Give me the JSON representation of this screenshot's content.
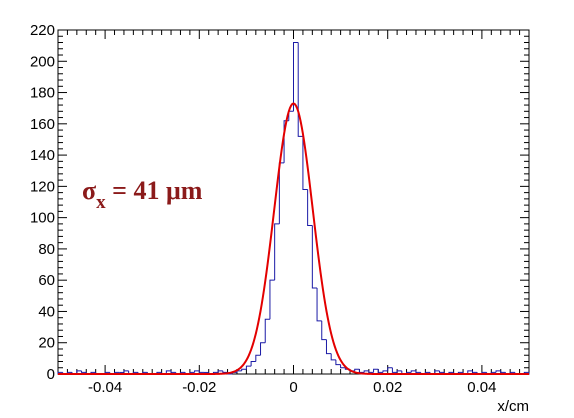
{
  "chart_data": {
    "type": "histogram",
    "title": "",
    "xlabel": "x/cm",
    "ylabel": "",
    "xlim": [
      -0.05,
      0.05
    ],
    "ylim": [
      0,
      220
    ],
    "x_ticks": [
      -0.04,
      -0.02,
      0,
      0.02,
      0.04
    ],
    "x_tick_labels": [
      "-0.04",
      "-0.02",
      "0",
      "0.02",
      "0.04"
    ],
    "y_ticks": [
      0,
      20,
      40,
      60,
      80,
      100,
      120,
      140,
      160,
      180,
      200,
      220
    ],
    "y_tick_labels": [
      "0",
      "20",
      "40",
      "60",
      "80",
      "100",
      "120",
      "140",
      "160",
      "180",
      "200",
      "220"
    ],
    "grid": false,
    "legend": "none",
    "bin_width": 0.001,
    "histogram": {
      "color": "#1a1aa6",
      "bin_low_edges": [
        -0.05,
        -0.049,
        -0.048,
        -0.047,
        -0.046,
        -0.045,
        -0.044,
        -0.043,
        -0.042,
        -0.041,
        -0.04,
        -0.039,
        -0.038,
        -0.037,
        -0.036,
        -0.035,
        -0.034,
        -0.033,
        -0.032,
        -0.031,
        -0.03,
        -0.029,
        -0.028,
        -0.027,
        -0.026,
        -0.025,
        -0.024,
        -0.023,
        -0.022,
        -0.021,
        -0.02,
        -0.019,
        -0.018,
        -0.017,
        -0.016,
        -0.015,
        -0.014,
        -0.013,
        -0.012,
        -0.011,
        -0.01,
        -0.009,
        -0.008,
        -0.007,
        -0.006,
        -0.005,
        -0.004,
        -0.003,
        -0.002,
        -0.001,
        0.0,
        0.001,
        0.002,
        0.003,
        0.004,
        0.005,
        0.006,
        0.007,
        0.008,
        0.009,
        0.01,
        0.011,
        0.012,
        0.013,
        0.014,
        0.015,
        0.016,
        0.017,
        0.018,
        0.019,
        0.02,
        0.021,
        0.022,
        0.023,
        0.024,
        0.025,
        0.026,
        0.027,
        0.028,
        0.029,
        0.03,
        0.031,
        0.032,
        0.033,
        0.034,
        0.035,
        0.036,
        0.037,
        0.038,
        0.039,
        0.04,
        0.041,
        0.042,
        0.043,
        0.044,
        0.045,
        0.046,
        0.047,
        0.048,
        0.049
      ],
      "counts": [
        1,
        0,
        1,
        0,
        2,
        1,
        0,
        1,
        0,
        0,
        1,
        0,
        1,
        1,
        2,
        0,
        1,
        0,
        1,
        0,
        0,
        1,
        0,
        2,
        1,
        0,
        1,
        0,
        1,
        2,
        1,
        1,
        0,
        1,
        2,
        1,
        0,
        1,
        2,
        3,
        5,
        8,
        12,
        20,
        35,
        60,
        96,
        135,
        162,
        168,
        212,
        152,
        118,
        95,
        55,
        34,
        22,
        13,
        9,
        6,
        4,
        3,
        2,
        3,
        1,
        2,
        1,
        3,
        1,
        2,
        4,
        1,
        2,
        0,
        1,
        2,
        1,
        0,
        1,
        0,
        2,
        1,
        0,
        1,
        0,
        1,
        0,
        2,
        1,
        0,
        1,
        0,
        1,
        2,
        1,
        0,
        1,
        0,
        0,
        1
      ]
    },
    "fit": {
      "function": "gaussian",
      "color": "#e30000",
      "constant": 173,
      "mean": 0.0,
      "sigma": 0.0041,
      "x_range": [
        -0.05,
        0.05
      ]
    },
    "annotation": {
      "symbol": "σ",
      "subscript": "x",
      "text": " = 41 μm",
      "color": "#8b1a1a"
    }
  }
}
